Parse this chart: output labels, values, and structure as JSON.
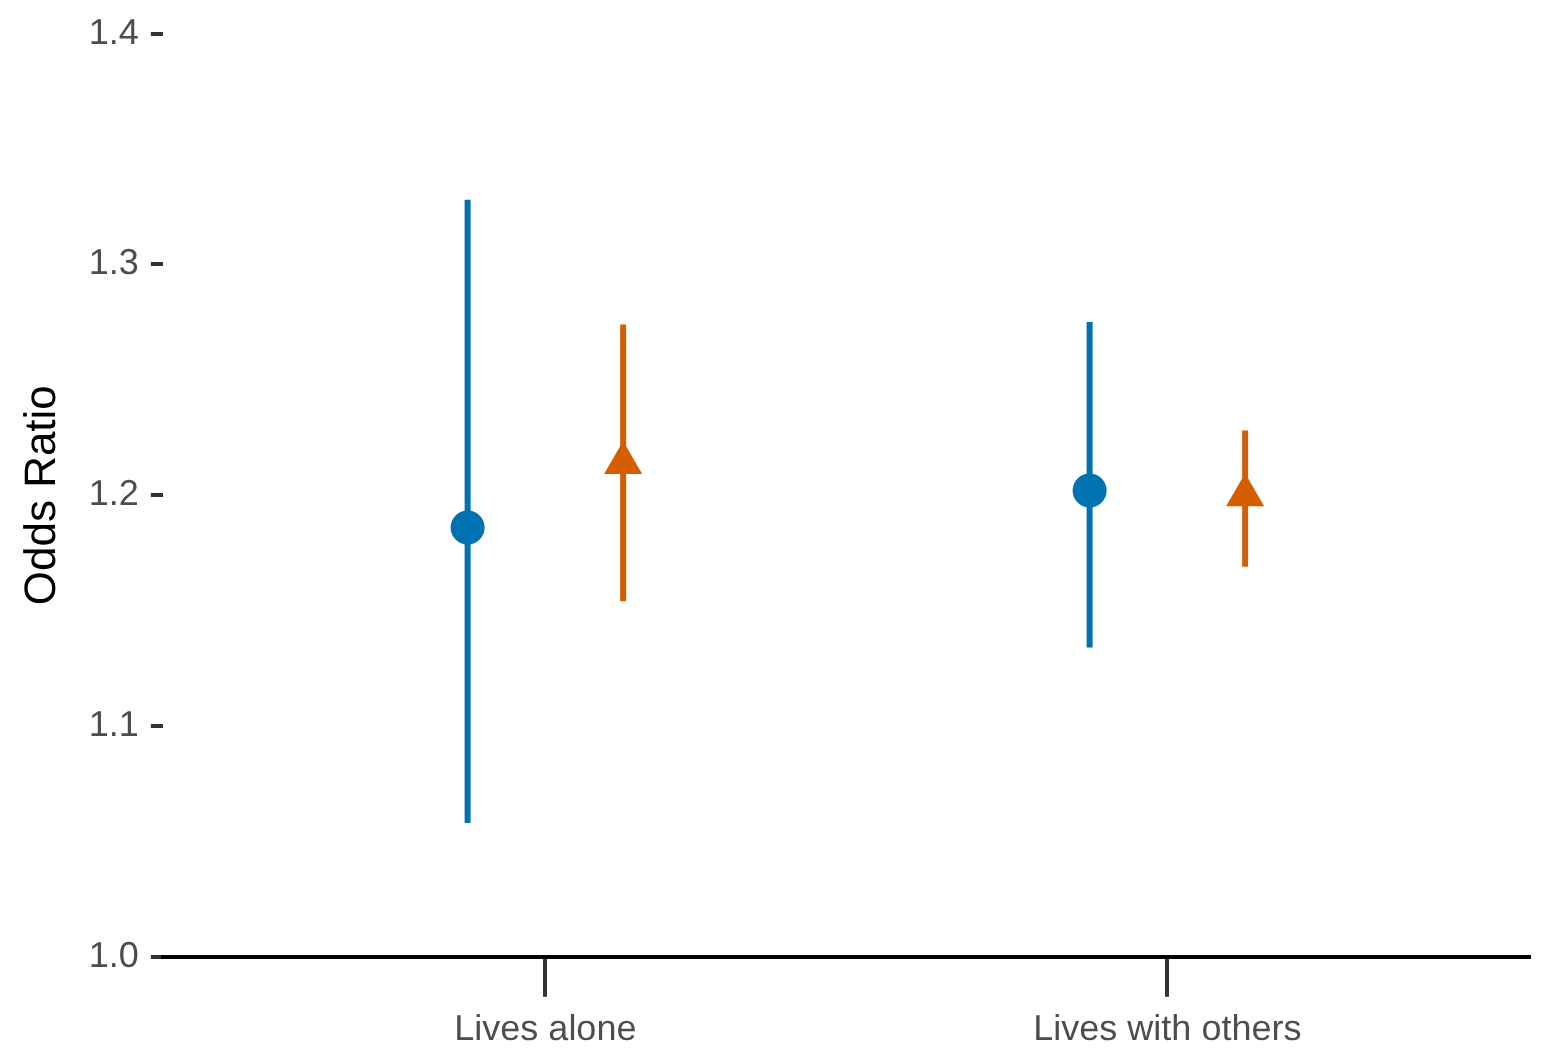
{
  "chart_data": {
    "type": "scatter",
    "ylabel": "Odds Ratio",
    "categories": [
      "Lives alone",
      "Lives with others"
    ],
    "ylim": [
      1.0,
      1.4
    ],
    "yticks": [
      {
        "value": 1,
        "label": "1.0"
      },
      1.1,
      1.2,
      1.3,
      {
        "value": 1.4,
        "label": "1.4"
      }
    ],
    "grid": false,
    "legend": false,
    "series": [
      {
        "color": "#0072b2",
        "marker": "circle",
        "values": [
          1.186,
          1.202
        ],
        "errors": [
          [
            1.058,
            1.328
          ],
          [
            1.134,
            1.275
          ]
        ]
      },
      {
        "color": "#d55e00",
        "marker": "triangle",
        "values": [
          1.214,
          1.2
        ],
        "errors": [
          [
            1.154,
            1.274
          ],
          [
            1.169,
            1.228
          ]
        ]
      }
    ]
  }
}
